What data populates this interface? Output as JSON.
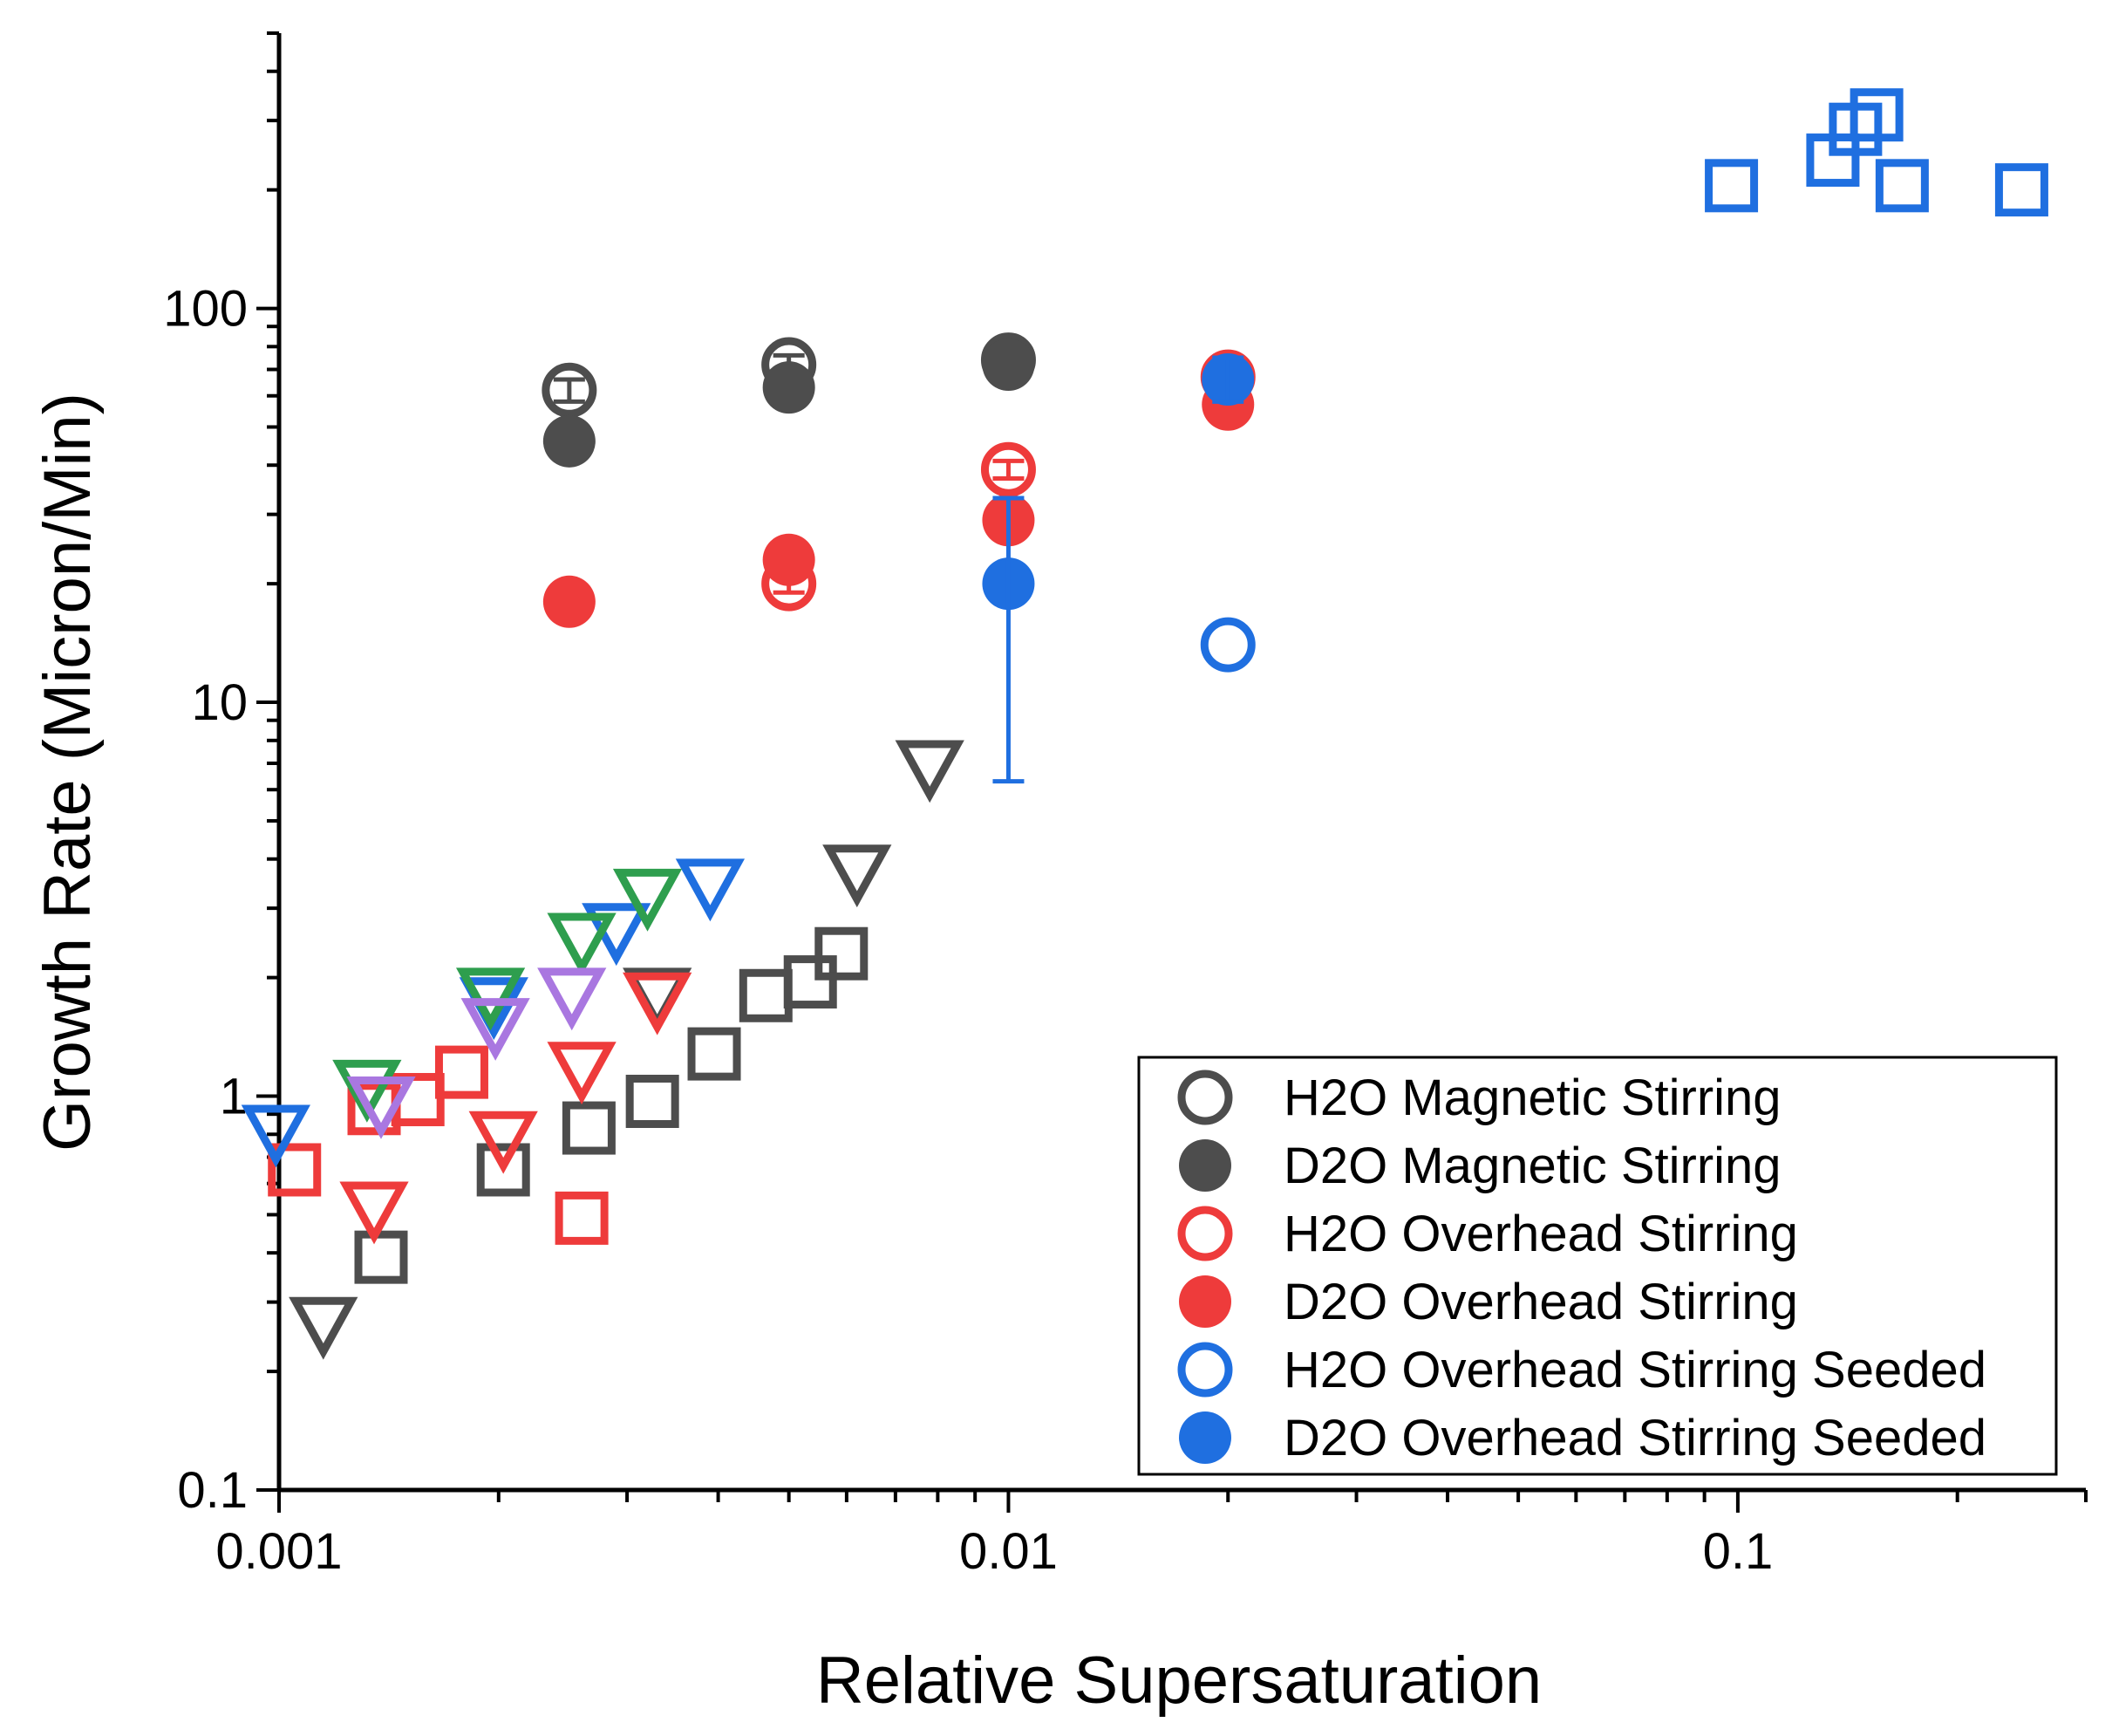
{
  "chart_data": {
    "type": "scatter",
    "title": "",
    "xlabel": "Relative Supersaturation",
    "ylabel": "Growth Rate (Micron/Min)",
    "xscale": "log",
    "yscale": "log",
    "xlim": [
      0.001,
      0.3
    ],
    "ylim": [
      0.1,
      500
    ],
    "x_tick_labels": [
      "0.001",
      "0.01",
      "0.1"
    ],
    "y_tick_labels": [
      "0.1",
      "1",
      "10",
      "100"
    ],
    "grid": false,
    "legend_position": "bottom-right",
    "legend": [
      {
        "label": "H2O Magnetic Stirring",
        "color": "#4d4d4d",
        "filled": false
      },
      {
        "label": "D2O Magnetic Stirring",
        "color": "#4d4d4d",
        "filled": true
      },
      {
        "label": "H2O Overhead Stirring",
        "color": "#ee3b3b",
        "filled": false
      },
      {
        "label": "D2O Overhead Stirring",
        "color": "#ee3b3b",
        "filled": true
      },
      {
        "label": "H2O Overhead Stirring Seeded",
        "color": "#1f6fe0",
        "filled": false
      },
      {
        "label": "D2O Overhead Stirring Seeded",
        "color": "#1f6fe0",
        "filled": true
      }
    ],
    "series": [
      {
        "legend_index": 0,
        "marker": "circle",
        "color": "#4d4d4d",
        "filled": false,
        "x": [
          0.0025,
          0.005,
          0.01
        ],
        "y": [
          62,
          72,
          74
        ],
        "error": [
          4,
          4,
          3
        ]
      },
      {
        "legend_index": 1,
        "marker": "circle",
        "color": "#4d4d4d",
        "filled": true,
        "x": [
          0.0025,
          0.005,
          0.01
        ],
        "y": [
          46,
          63,
          72
        ]
      },
      {
        "legend_index": 2,
        "marker": "circle",
        "color": "#ee3b3b",
        "filled": false,
        "x": [
          0.005,
          0.01,
          0.02
        ],
        "y": [
          20,
          39,
          67
        ],
        "error": [
          1,
          2,
          5
        ]
      },
      {
        "legend_index": 3,
        "marker": "circle",
        "color": "#ee3b3b",
        "filled": true,
        "x": [
          0.0025,
          0.005,
          0.01,
          0.02
        ],
        "y": [
          18,
          23,
          29,
          57
        ]
      },
      {
        "legend_index": 4,
        "marker": "circle",
        "color": "#1f6fe0",
        "filled": false,
        "x": [
          0.02
        ],
        "y": [
          14
        ]
      },
      {
        "legend_index": 5,
        "marker": "circle",
        "color": "#1f6fe0",
        "filled": true,
        "x": [
          0.01,
          0.02
        ],
        "y": [
          20,
          66
        ],
        "error_low": [
          6.3,
          58
        ],
        "error_high": [
          33,
          75
        ]
      },
      {
        "marker": "triangle-down",
        "color": "#4d4d4d",
        "filled": false,
        "x": [
          0.00115,
          0.0033,
          0.0062,
          0.0078
        ],
        "y": [
          0.27,
          1.85,
          3.8,
          7.0
        ]
      },
      {
        "marker": "square",
        "color": "#4d4d4d",
        "filled": false,
        "x": [
          0.00138,
          0.00203,
          0.00266,
          0.00325,
          0.00395,
          0.00465,
          0.00535,
          0.0059
        ],
        "y": [
          0.39,
          0.65,
          0.83,
          0.97,
          1.28,
          1.8,
          1.95,
          2.3
        ]
      },
      {
        "marker": "triangle-down",
        "color": "#ee3b3b",
        "filled": false,
        "x": [
          0.00135,
          0.00203,
          0.0026,
          0.0033
        ],
        "y": [
          0.53,
          0.8,
          1.2,
          1.8
        ]
      },
      {
        "marker": "square",
        "color": "#ee3b3b",
        "filled": false,
        "x": [
          0.00105,
          0.00135,
          0.00155,
          0.00178,
          0.0026
        ],
        "y": [
          0.65,
          0.93,
          0.98,
          1.15,
          0.49
        ]
      },
      {
        "marker": "triangle-down",
        "color": "#1f6fe0",
        "filled": false,
        "x": [
          0.00099,
          0.00197,
          0.0029,
          0.0039
        ],
        "y": [
          0.83,
          1.75,
          2.7,
          3.5
        ]
      },
      {
        "marker": "square",
        "color": "#1f6fe0",
        "filled": false,
        "x": [
          0.098,
          0.135,
          0.145,
          0.155,
          0.168,
          0.245
        ],
        "y": [
          205,
          238,
          285,
          310,
          205,
          200
        ]
      },
      {
        "marker": "triangle-down",
        "color": "#2e9e4e",
        "filled": false,
        "x": [
          0.00132,
          0.00195,
          0.0026,
          0.0032
        ],
        "y": [
          1.08,
          1.85,
          2.55,
          3.3
        ]
      },
      {
        "marker": "triangle-down",
        "color": "#a977e0",
        "filled": false,
        "x": [
          0.00138,
          0.00198,
          0.00252
        ],
        "y": [
          0.98,
          1.55,
          1.85
        ]
      }
    ]
  }
}
